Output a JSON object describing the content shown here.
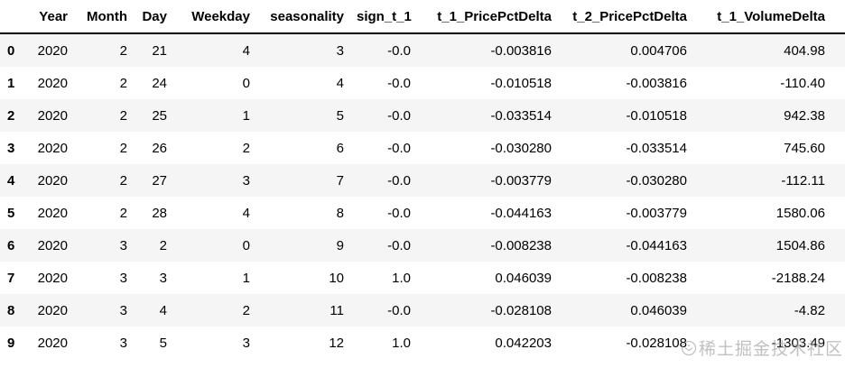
{
  "table": {
    "columns": [
      "",
      "Year",
      "Month",
      "Day",
      "Weekday",
      "seasonality",
      "sign_t_1",
      "t_1_PricePctDelta",
      "t_2_PricePctDelta",
      "t_1_VolumeDelta"
    ],
    "rows": [
      {
        "index": "0",
        "cells": [
          "2020",
          "2",
          "21",
          "4",
          "3",
          "-0.0",
          "-0.003816",
          "0.004706",
          "404.98"
        ]
      },
      {
        "index": "1",
        "cells": [
          "2020",
          "2",
          "24",
          "0",
          "4",
          "-0.0",
          "-0.010518",
          "-0.003816",
          "-110.40"
        ]
      },
      {
        "index": "2",
        "cells": [
          "2020",
          "2",
          "25",
          "1",
          "5",
          "-0.0",
          "-0.033514",
          "-0.010518",
          "942.38"
        ]
      },
      {
        "index": "3",
        "cells": [
          "2020",
          "2",
          "26",
          "2",
          "6",
          "-0.0",
          "-0.030280",
          "-0.033514",
          "745.60"
        ]
      },
      {
        "index": "4",
        "cells": [
          "2020",
          "2",
          "27",
          "3",
          "7",
          "-0.0",
          "-0.003779",
          "-0.030280",
          "-112.11"
        ]
      },
      {
        "index": "5",
        "cells": [
          "2020",
          "2",
          "28",
          "4",
          "8",
          "-0.0",
          "-0.044163",
          "-0.003779",
          "1580.06"
        ]
      },
      {
        "index": "6",
        "cells": [
          "2020",
          "3",
          "2",
          "0",
          "9",
          "-0.0",
          "-0.008238",
          "-0.044163",
          "1504.86"
        ]
      },
      {
        "index": "7",
        "cells": [
          "2020",
          "3",
          "3",
          "1",
          "10",
          "1.0",
          "0.046039",
          "-0.008238",
          "-2188.24"
        ]
      },
      {
        "index": "8",
        "cells": [
          "2020",
          "3",
          "4",
          "2",
          "11",
          "-0.0",
          "-0.028108",
          "0.046039",
          "-4.82"
        ]
      },
      {
        "index": "9",
        "cells": [
          "2020",
          "3",
          "5",
          "3",
          "12",
          "1.0",
          "0.042203",
          "-0.028108",
          "-1303.49"
        ]
      }
    ]
  },
  "watermark": {
    "text": "稀土掘金技术社区",
    "icon": "juejin-logo",
    "color": "#9a9a9a"
  },
  "colors": {
    "stripe_row": "#f5f5f5",
    "header_border": "#000000",
    "text": "#000000",
    "background": "#ffffff"
  }
}
